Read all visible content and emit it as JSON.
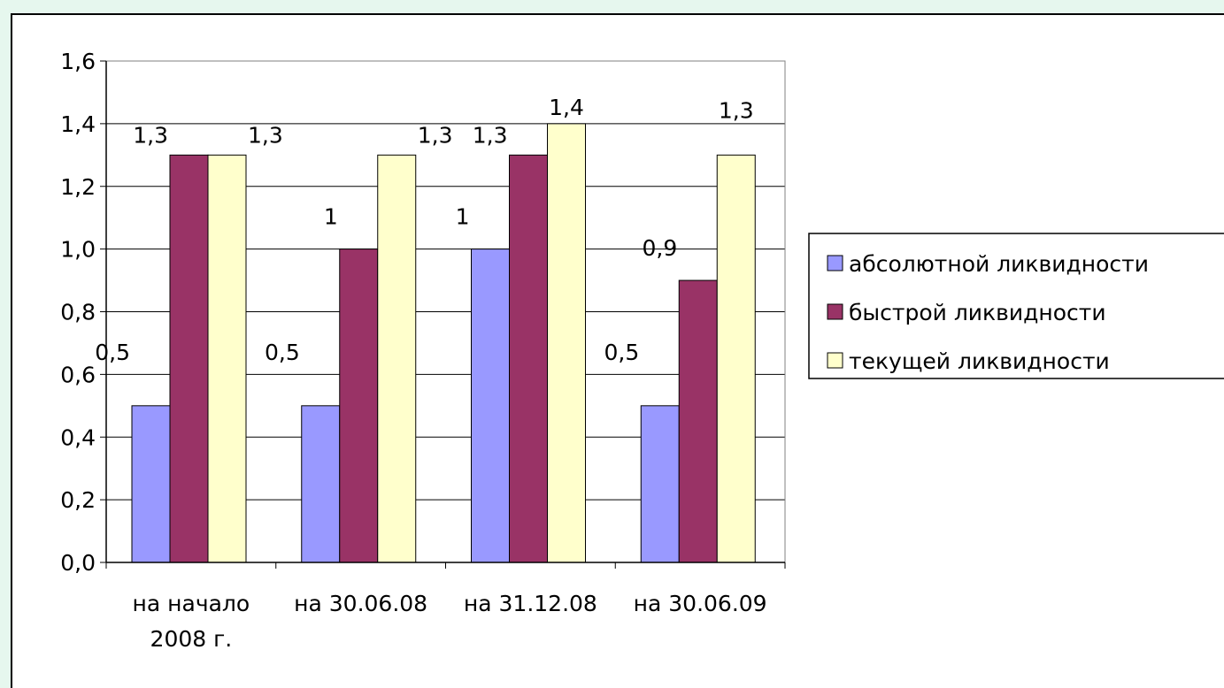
{
  "chart_data": {
    "type": "bar",
    "categories": [
      [
        "на начало",
        "2008 г."
      ],
      [
        "на 30.06.08"
      ],
      [
        "на 31.12.08"
      ],
      [
        "на 30.06.09"
      ]
    ],
    "series": [
      {
        "name": "абсолютной ликвидности",
        "values": [
          0.5,
          0.5,
          1.0,
          0.5
        ],
        "labels": [
          "0,5",
          "0,5",
          "1",
          "0,5"
        ],
        "color": "#9999ff"
      },
      {
        "name": "быстрой ликвидности",
        "values": [
          1.3,
          1.0,
          1.3,
          0.9
        ],
        "labels": [
          "1,3",
          "1",
          "1,3",
          "0,9"
        ],
        "color": "#993366"
      },
      {
        "name": "текущей ликвидности",
        "values": [
          1.3,
          1.3,
          1.4,
          1.3
        ],
        "labels": [
          "1,3",
          "1,3",
          "1,4",
          "1,3"
        ],
        "color": "#ffffcc"
      }
    ],
    "ylim": [
      0,
      1.6
    ],
    "yticks": [
      "0,0",
      "0,2",
      "0,4",
      "0,6",
      "0,8",
      "1,0",
      "1,2",
      "1,4",
      "1,6"
    ],
    "grid": true,
    "legend_position": "right",
    "title": "",
    "xlabel": "",
    "ylabel": ""
  }
}
